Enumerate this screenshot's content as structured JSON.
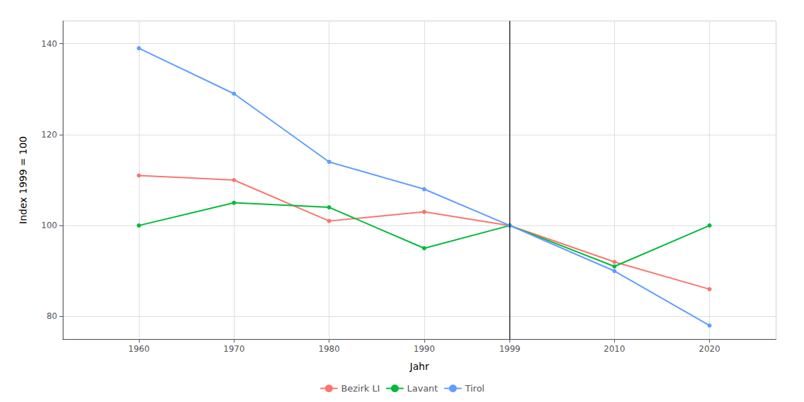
{
  "chart_data": {
    "type": "line",
    "x": [
      1960,
      1970,
      1980,
      1990,
      1999,
      2010,
      2020
    ],
    "series": [
      {
        "name": "Bezirk LI",
        "color": "#F8766D",
        "values": [
          111,
          110,
          101,
          103,
          100,
          92,
          86
        ]
      },
      {
        "name": "Lavant",
        "color": "#00BA38",
        "values": [
          100,
          105,
          104,
          95,
          100,
          91,
          100
        ]
      },
      {
        "name": "Tirol",
        "color": "#619CFF",
        "values": [
          139,
          129,
          114,
          108,
          100,
          90,
          78
        ]
      }
    ],
    "xlabel": "Jahr",
    "ylabel": "Index 1999 = 100",
    "xlim": [
      1952,
      2027
    ],
    "ylim": [
      75,
      145
    ],
    "xticks": [
      1960,
      1970,
      1980,
      1990,
      1999,
      2010,
      2020
    ],
    "yticks": [
      80,
      100,
      120,
      140
    ],
    "vline": 1999,
    "grid": true,
    "legend": "bottom",
    "marker": "circle"
  }
}
